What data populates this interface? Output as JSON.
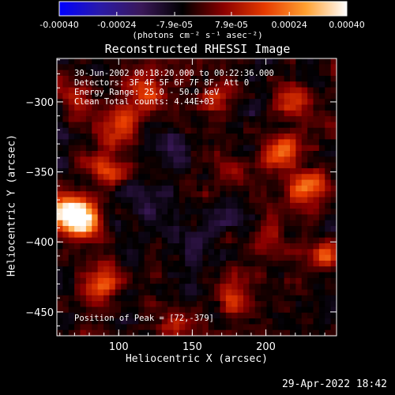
{
  "colorbar": {
    "title": "(photons cm⁻² s⁻¹ asec⁻²)",
    "ticks": [
      {
        "value": -0.0004,
        "label": "-0.00040"
      },
      {
        "value": -0.00024,
        "label": "-0.00024"
      },
      {
        "value": -7.9e-05,
        "label": "-7.9e-05"
      },
      {
        "value": 7.9e-05,
        "label": "7.9e-05"
      },
      {
        "value": 0.00024,
        "label": "0.00024"
      },
      {
        "value": 0.0004,
        "label": "0.00040"
      }
    ],
    "range": [
      -0.0004,
      0.0004
    ],
    "stops": [
      "#0000ff",
      "#2a1aa8",
      "#3a1858",
      "#000000",
      "#8a0000",
      "#e63a00",
      "#ffa030",
      "#ffffff"
    ]
  },
  "chart_data": {
    "type": "heatmap",
    "title": "Reconstructed RHESSI Image",
    "xlabel": "Heliocentric X (arcsec)",
    "ylabel": "Heliocentric Y (arcsec)",
    "xlim": [
      58,
      248
    ],
    "ylim": [
      -467,
      -269
    ],
    "xticks": [
      100,
      150,
      200
    ],
    "yticks": [
      -300,
      -350,
      -400,
      -450
    ],
    "annotations": [
      "30-Jun-2002 00:18:20.000 to 00:22:36.000",
      "Detectors: 3F 4F 5F 6F 7F 8F, Att 0",
      "Energy Range: 25.0 - 50.0 keV",
      "Clean    Total counts: 4.44E+03"
    ],
    "peak_label": "Position of Peak = [72,-379]",
    "peak": [
      72,
      -379
    ],
    "blobs": [
      {
        "x": 66,
        "y": -379,
        "s": 9,
        "a": 1.35
      },
      {
        "x": 78,
        "y": -385,
        "s": 8,
        "a": 0.9
      },
      {
        "x": 92,
        "y": -348,
        "s": 8,
        "a": 0.55
      },
      {
        "x": 100,
        "y": -318,
        "s": 9,
        "a": 0.65
      },
      {
        "x": 70,
        "y": -298,
        "s": 8,
        "a": 0.5
      },
      {
        "x": 120,
        "y": -290,
        "s": 10,
        "a": 0.55
      },
      {
        "x": 165,
        "y": -300,
        "s": 8,
        "a": 0.45
      },
      {
        "x": 210,
        "y": -335,
        "s": 9,
        "a": 0.75
      },
      {
        "x": 228,
        "y": -362,
        "s": 10,
        "a": 0.7
      },
      {
        "x": 220,
        "y": -300,
        "s": 8,
        "a": 0.55
      },
      {
        "x": 170,
        "y": -345,
        "s": 8,
        "a": 0.45
      },
      {
        "x": 180,
        "y": -440,
        "s": 9,
        "a": 0.6
      },
      {
        "x": 240,
        "y": -410,
        "s": 8,
        "a": 0.6
      },
      {
        "x": 140,
        "y": -460,
        "s": 8,
        "a": 0.45
      },
      {
        "x": 90,
        "y": -430,
        "s": 9,
        "a": 0.55
      },
      {
        "x": 202,
        "y": -395,
        "s": 8,
        "a": 0.45
      },
      {
        "x": 150,
        "y": -400,
        "s": 9,
        "a": -0.35
      },
      {
        "x": 120,
        "y": -370,
        "s": 10,
        "a": -0.3
      },
      {
        "x": 140,
        "y": -330,
        "s": 10,
        "a": -0.25
      },
      {
        "x": 175,
        "y": -380,
        "s": 9,
        "a": -0.3
      },
      {
        "x": 110,
        "y": -410,
        "s": 8,
        "a": -0.25
      }
    ]
  },
  "timestamp": "29-Apr-2022 18:42"
}
